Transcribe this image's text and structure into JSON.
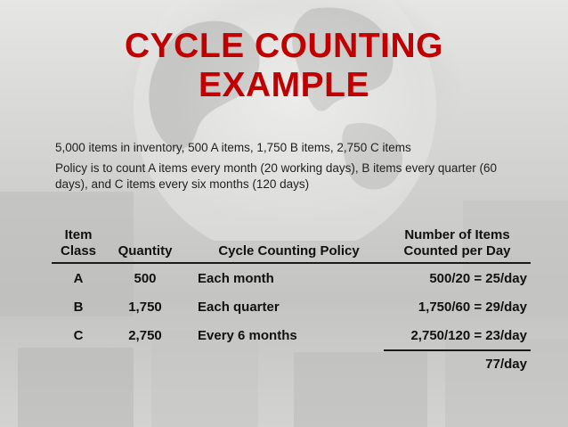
{
  "title": {
    "line1": "CYCLE COUNTING",
    "line2": "EXAMPLE"
  },
  "bullets": [
    "5,000 items in inventory, 500 A items, 1,750 B items, 2,750 C items",
    "Policy is to count A items every month (20 working days), B items every quarter (60 days), and C items every six months (120 days)"
  ],
  "table": {
    "headers": {
      "class_line1": "Item",
      "class_line2": "Class",
      "quantity": "Quantity",
      "policy": "Cycle Counting Policy",
      "rate_line1": "Number of Items",
      "rate_line2": "Counted per Day"
    },
    "rows": [
      {
        "class": "A",
        "quantity": "500",
        "policy": "Each month",
        "rate": "500/20 = 25/day"
      },
      {
        "class": "B",
        "quantity": "1,750",
        "policy": "Each quarter",
        "rate": "1,750/60 = 29/day"
      },
      {
        "class": "C",
        "quantity": "2,750",
        "policy": "Every 6 months",
        "rate": "2,750/120 = 23/day"
      }
    ],
    "total": "77/day"
  },
  "colors": {
    "title": "#c00000",
    "text": "#1f1f1f"
  }
}
